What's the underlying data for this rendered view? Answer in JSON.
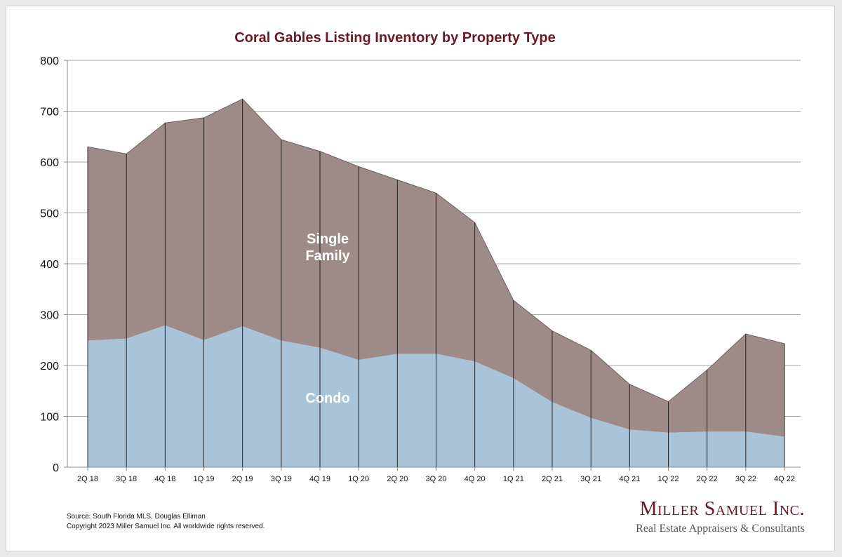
{
  "chart_data": {
    "type": "area",
    "stacked": true,
    "title": "Coral Gables Listing Inventory by Property Type",
    "xlabel": "",
    "ylabel": "",
    "ylim": [
      0,
      800
    ],
    "yticks": [
      0,
      100,
      200,
      300,
      400,
      500,
      600,
      700,
      800
    ],
    "grid": true,
    "categories": [
      "2Q 18",
      "3Q 18",
      "4Q 18",
      "1Q 19",
      "2Q 19",
      "3Q 19",
      "4Q 19",
      "1Q 20",
      "2Q 20",
      "3Q 20",
      "4Q 20",
      "1Q 21",
      "2Q 21",
      "3Q 21",
      "4Q 21",
      "1Q 22",
      "2Q 22",
      "3Q 22",
      "4Q 22"
    ],
    "series": [
      {
        "name": "Condo",
        "color": "#a9c3d8",
        "values": [
          249,
          253,
          279,
          250,
          277,
          249,
          235,
          211,
          223,
          223,
          208,
          175,
          128,
          97,
          74,
          68,
          70,
          70,
          60
        ]
      },
      {
        "name": "Single Family",
        "color": "#9e8a89",
        "values": [
          381,
          363,
          398,
          437,
          447,
          395,
          386,
          380,
          342,
          316,
          273,
          153,
          140,
          133,
          89,
          61,
          121,
          192,
          183
        ]
      }
    ],
    "series_labels": {
      "condo": "Condo",
      "single_family_line1": "Single",
      "single_family_line2": "Family"
    }
  },
  "footer": {
    "source": "Source: South Florida MLS, Douglas Elliman",
    "copyright": "Copyright 2023 Miller Samuel Inc.  All worldwide rights reserved."
  },
  "brand": {
    "name": "Miller Samuel Inc.",
    "tagline": "Real Estate Appraisers & Consultants"
  }
}
